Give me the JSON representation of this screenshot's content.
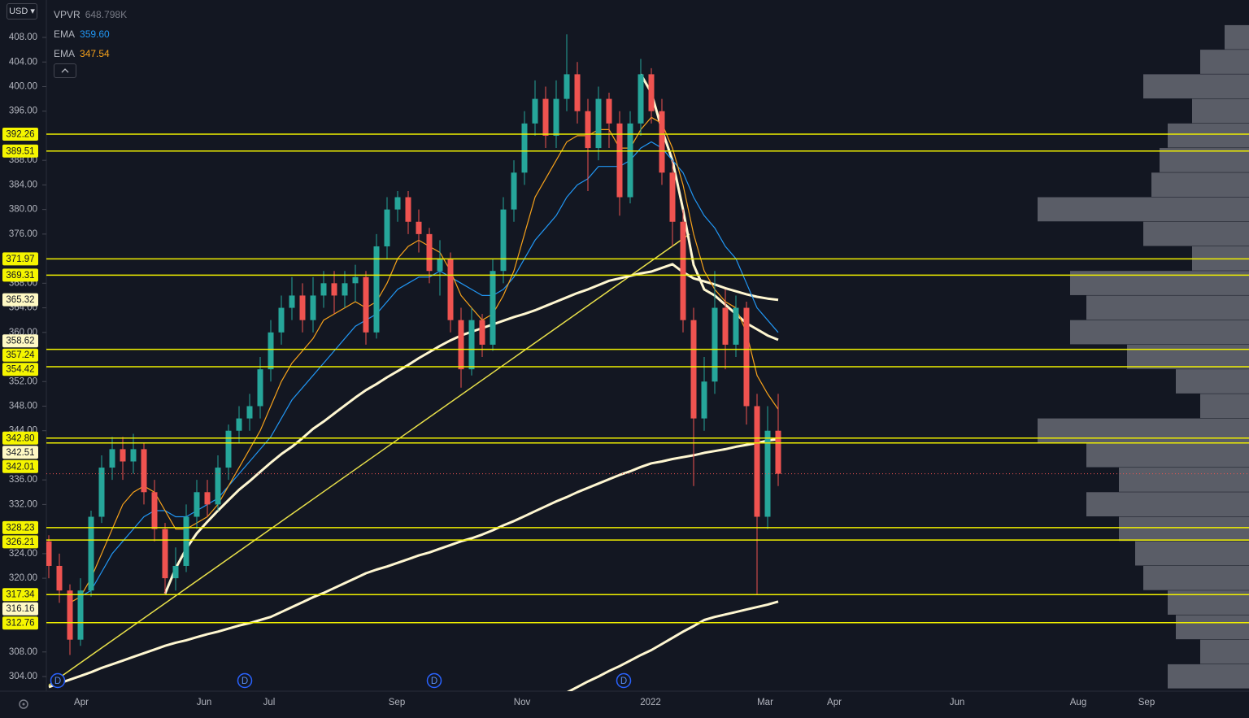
{
  "currency": "USD",
  "chart_data": {
    "type": "candlestick",
    "ylim": [
      301.62,
      414.09
    ],
    "yticks": [
      {
        "value": 408,
        "label": "408.00"
      },
      {
        "value": 404,
        "label": "404.00"
      },
      {
        "value": 400,
        "label": "400.00"
      },
      {
        "value": 396,
        "label": "396.00"
      },
      {
        "value": 388,
        "label": "388.00"
      },
      {
        "value": 384,
        "label": "384.00"
      },
      {
        "value": 380,
        "label": "380.00"
      },
      {
        "value": 376,
        "label": "376.00"
      },
      {
        "value": 368,
        "label": "368.00"
      },
      {
        "value": 364,
        "label": "364.00"
      },
      {
        "value": 360,
        "label": "360.00"
      },
      {
        "value": 352,
        "label": "352.00"
      },
      {
        "value": 348,
        "label": "348.00"
      },
      {
        "value": 344,
        "label": "344.00"
      },
      {
        "value": 336,
        "label": "336.00"
      },
      {
        "value": 332,
        "label": "332.00"
      },
      {
        "value": 324,
        "label": "324.00"
      },
      {
        "value": 320,
        "label": "320.00"
      },
      {
        "value": 308,
        "label": "308.00"
      },
      {
        "value": 304,
        "label": "304.00"
      }
    ],
    "x_labels": [
      "Apr",
      "Jun",
      "Jul",
      "Sep",
      "Nov",
      "2022",
      "Mar",
      "Apr",
      "Jun",
      "Aug",
      "Sep"
    ],
    "candles": {
      "open": [
        326,
        322,
        318,
        310,
        318,
        330,
        338,
        341,
        339,
        341,
        334,
        328,
        320,
        322,
        330,
        334,
        332,
        338,
        344,
        346,
        348,
        354,
        360,
        364,
        366,
        362,
        366,
        368,
        366,
        368,
        369,
        360,
        374,
        380,
        382,
        378,
        376,
        370,
        372,
        362,
        354,
        362,
        358,
        370,
        380,
        386,
        394,
        398,
        392,
        398,
        402,
        396,
        390,
        398,
        394,
        382,
        394,
        402,
        396,
        386,
        378,
        362,
        346,
        352,
        364,
        358,
        364,
        348,
        330,
        344
      ],
      "high": [
        327,
        324,
        319,
        320,
        331,
        340,
        343,
        343,
        343.5,
        342,
        336,
        329,
        325,
        332,
        336,
        336,
        340,
        345,
        348,
        350,
        356,
        362,
        366,
        369,
        368,
        369,
        370,
        370,
        370,
        371,
        370,
        376,
        382,
        383,
        383,
        380,
        377,
        375,
        373,
        364,
        364,
        363,
        372,
        382,
        388,
        396,
        401,
        400,
        401,
        408.5,
        404,
        398,
        400,
        399,
        396,
        396,
        404.5,
        403,
        398,
        388,
        380,
        364,
        356,
        370,
        367,
        366,
        365,
        350,
        348,
        350
      ],
      "low": [
        320,
        316,
        307.5,
        309,
        317,
        329,
        336,
        336,
        337,
        332,
        326,
        317.5,
        318,
        321,
        328,
        330,
        331,
        336,
        342,
        344,
        346,
        352,
        358,
        362,
        360,
        360,
        364,
        363,
        364,
        365,
        358,
        359,
        372,
        378,
        376,
        373,
        368,
        366,
        360,
        351,
        353,
        356,
        357,
        368,
        378,
        384,
        392,
        390,
        390,
        396,
        394,
        383,
        388,
        390,
        379,
        381,
        392,
        394,
        384,
        374,
        360,
        335,
        344,
        350,
        354,
        356,
        345,
        317.4,
        328,
        335
      ],
      "close": [
        322,
        318,
        310,
        318,
        330,
        338,
        341,
        339,
        341,
        334,
        328,
        320,
        322,
        330,
        334,
        332,
        338,
        344,
        346,
        348,
        354,
        360,
        364,
        366,
        362,
        366,
        368,
        366,
        368,
        369,
        360,
        374,
        380,
        382,
        378,
        376,
        370,
        372,
        362,
        354,
        362,
        358,
        370,
        380,
        386,
        394,
        398,
        392,
        398,
        402,
        396,
        390,
        398,
        394,
        382,
        394,
        402,
        396,
        386,
        378,
        362,
        346,
        352,
        364,
        358,
        364,
        348,
        330,
        344,
        337
      ],
      "up_color": "#26a69a",
      "down_color": "#ef5350"
    },
    "series": [
      {
        "name": "EMA",
        "legend_value": "359.60",
        "color": "#2196f3",
        "values": [
          null,
          null,
          null,
          317,
          318,
          321,
          324,
          326,
          328,
          330,
          331,
          331,
          330,
          330,
          331,
          332,
          333,
          335,
          337,
          339,
          341,
          343,
          346,
          349,
          351,
          353,
          355,
          357,
          359,
          361,
          362,
          363,
          365,
          367,
          368,
          369,
          369,
          370,
          369,
          368,
          367,
          366,
          366,
          367,
          369,
          372,
          375,
          377,
          379,
          382,
          384,
          385,
          387,
          387,
          387,
          388,
          390,
          391,
          390,
          388,
          386,
          382,
          379,
          377,
          374,
          372,
          368,
          364,
          362,
          360
        ]
      },
      {
        "name": "EMA",
        "legend_value": "347.54",
        "color": "#f7a21b",
        "values": [
          null,
          null,
          316,
          317,
          320,
          324,
          328,
          332,
          334,
          335,
          334,
          331,
          328,
          328,
          329,
          330,
          332,
          335,
          338,
          341,
          344,
          348,
          352,
          355,
          357,
          359,
          362,
          363,
          364,
          365,
          364,
          365,
          368,
          372,
          374,
          375,
          374,
          373,
          370,
          366,
          364,
          362,
          363,
          366,
          370,
          376,
          382,
          385,
          388,
          391,
          392,
          392,
          393,
          393,
          390,
          390,
          393,
          395,
          394,
          390,
          384,
          376,
          370,
          367,
          365,
          364,
          360,
          353,
          350,
          347.5
        ]
      }
    ],
    "overlays": [
      {
        "color": "#fff7d1",
        "values": [
          302.3,
          302.9,
          303.5,
          304.1,
          304.7,
          305.4,
          306.0,
          306.6,
          307.2,
          307.8,
          308.4,
          309.0,
          309.5,
          309.9,
          310.4,
          310.9,
          311.3,
          311.8,
          312.3,
          312.7,
          313.2,
          313.7,
          314.5,
          315.3,
          316.1,
          316.9,
          317.6,
          318.4,
          319.2,
          320.0,
          320.8,
          321.4,
          321.9,
          322.5,
          323.1,
          323.7,
          324.2,
          324.8,
          325.4,
          326.0,
          326.5,
          327.1,
          327.8,
          328.6,
          329.3,
          330.1,
          330.9,
          331.7,
          332.5,
          333.2,
          334.0,
          334.7,
          335.4,
          336.1,
          336.8,
          337.4,
          338.1,
          338.7,
          339.0,
          339.4,
          339.7,
          340.0,
          340.4,
          340.7,
          341.0,
          341.4,
          341.7,
          342.0,
          342.4,
          342.6
        ]
      },
      {
        "color": "#fff7d1",
        "values": [
          null,
          null,
          null,
          null,
          null,
          null,
          null,
          null,
          null,
          null,
          null,
          317.5,
          321.6,
          324.8,
          327.3,
          329.2,
          331.0,
          332.7,
          334.4,
          335.8,
          337.3,
          338.8,
          340.2,
          341.4,
          342.8,
          344.3,
          345.5,
          346.8,
          348.1,
          349.4,
          350.6,
          351.6,
          352.7,
          353.7,
          354.7,
          355.8,
          356.8,
          357.8,
          358.7,
          359.5,
          360.1,
          360.7,
          361.3,
          361.9,
          362.5,
          363.0,
          363.6,
          364.3,
          365.0,
          365.7,
          366.4,
          367.0,
          367.7,
          368.4,
          368.8,
          369.2,
          369.6,
          369.9,
          370.5,
          371.1,
          369.8,
          368.8,
          368.3,
          367.8,
          367.2,
          366.7,
          366.2,
          365.8,
          365.5,
          365.3
        ]
      },
      {
        "color": "#fff7d1",
        "values": [
          null,
          null,
          null,
          null,
          null,
          null,
          null,
          null,
          null,
          null,
          null,
          null,
          null,
          null,
          null,
          null,
          null,
          null,
          null,
          null,
          null,
          null,
          null,
          null,
          null,
          null,
          null,
          null,
          null,
          null,
          null,
          null,
          null,
          null,
          null,
          null,
          null,
          null,
          null,
          null,
          null,
          null,
          null,
          null,
          null,
          null,
          null,
          null,
          null,
          301.4,
          302.3,
          303.2,
          304.0,
          304.9,
          305.7,
          306.6,
          307.5,
          308.3,
          309.3,
          310.3,
          311.3,
          312.2,
          313.2,
          313.7,
          314.1,
          314.5,
          314.9,
          315.3,
          315.7,
          316.2
        ]
      },
      {
        "color": "#fff7d1",
        "values": [
          null,
          null,
          null,
          null,
          null,
          null,
          null,
          null,
          null,
          null,
          null,
          null,
          null,
          null,
          null,
          null,
          null,
          null,
          null,
          null,
          null,
          null,
          null,
          null,
          null,
          null,
          null,
          null,
          null,
          null,
          null,
          null,
          null,
          null,
          null,
          null,
          null,
          null,
          null,
          null,
          null,
          null,
          null,
          null,
          null,
          null,
          null,
          null,
          null,
          null,
          null,
          null,
          null,
          null,
          null,
          null,
          402,
          399,
          393,
          388,
          380,
          371,
          367,
          366,
          364.5,
          363,
          361.5,
          360.5,
          359.5,
          358.8
        ]
      }
    ],
    "trendline": {
      "color": "#e8e04a",
      "values": [
        302.6,
        376
      ]
    },
    "levels": {
      "color": "#f0f000",
      "values": [
        392.26,
        389.51,
        371.97,
        369.31,
        357.24,
        354.42,
        {
          "value": 342.8,
          "label": "342.80"
        },
        342.01,
        328.23,
        326.21,
        317.34,
        312.76
      ]
    },
    "price_labels": [
      365.32,
      358.62,
      342.51,
      316.16
    ],
    "volume_profile": {
      "label": "VPVR",
      "total": "648.798K",
      "color": "#9598a1",
      "bins": [
        302,
        306,
        310,
        314,
        318,
        322,
        326,
        330,
        334,
        338,
        342,
        346,
        350,
        354,
        358,
        362,
        366,
        370,
        374,
        378,
        382,
        386,
        390,
        394,
        398,
        402,
        406,
        410
      ],
      "values": [
        100,
        60,
        90,
        100,
        130,
        140,
        160,
        200,
        160,
        200,
        260,
        60,
        90,
        150,
        220,
        200,
        220,
        70,
        130,
        260,
        120,
        110,
        100,
        70,
        130,
        60,
        30
      ]
    },
    "dividend_markers": [
      "D",
      "D",
      "D",
      "D"
    ]
  }
}
